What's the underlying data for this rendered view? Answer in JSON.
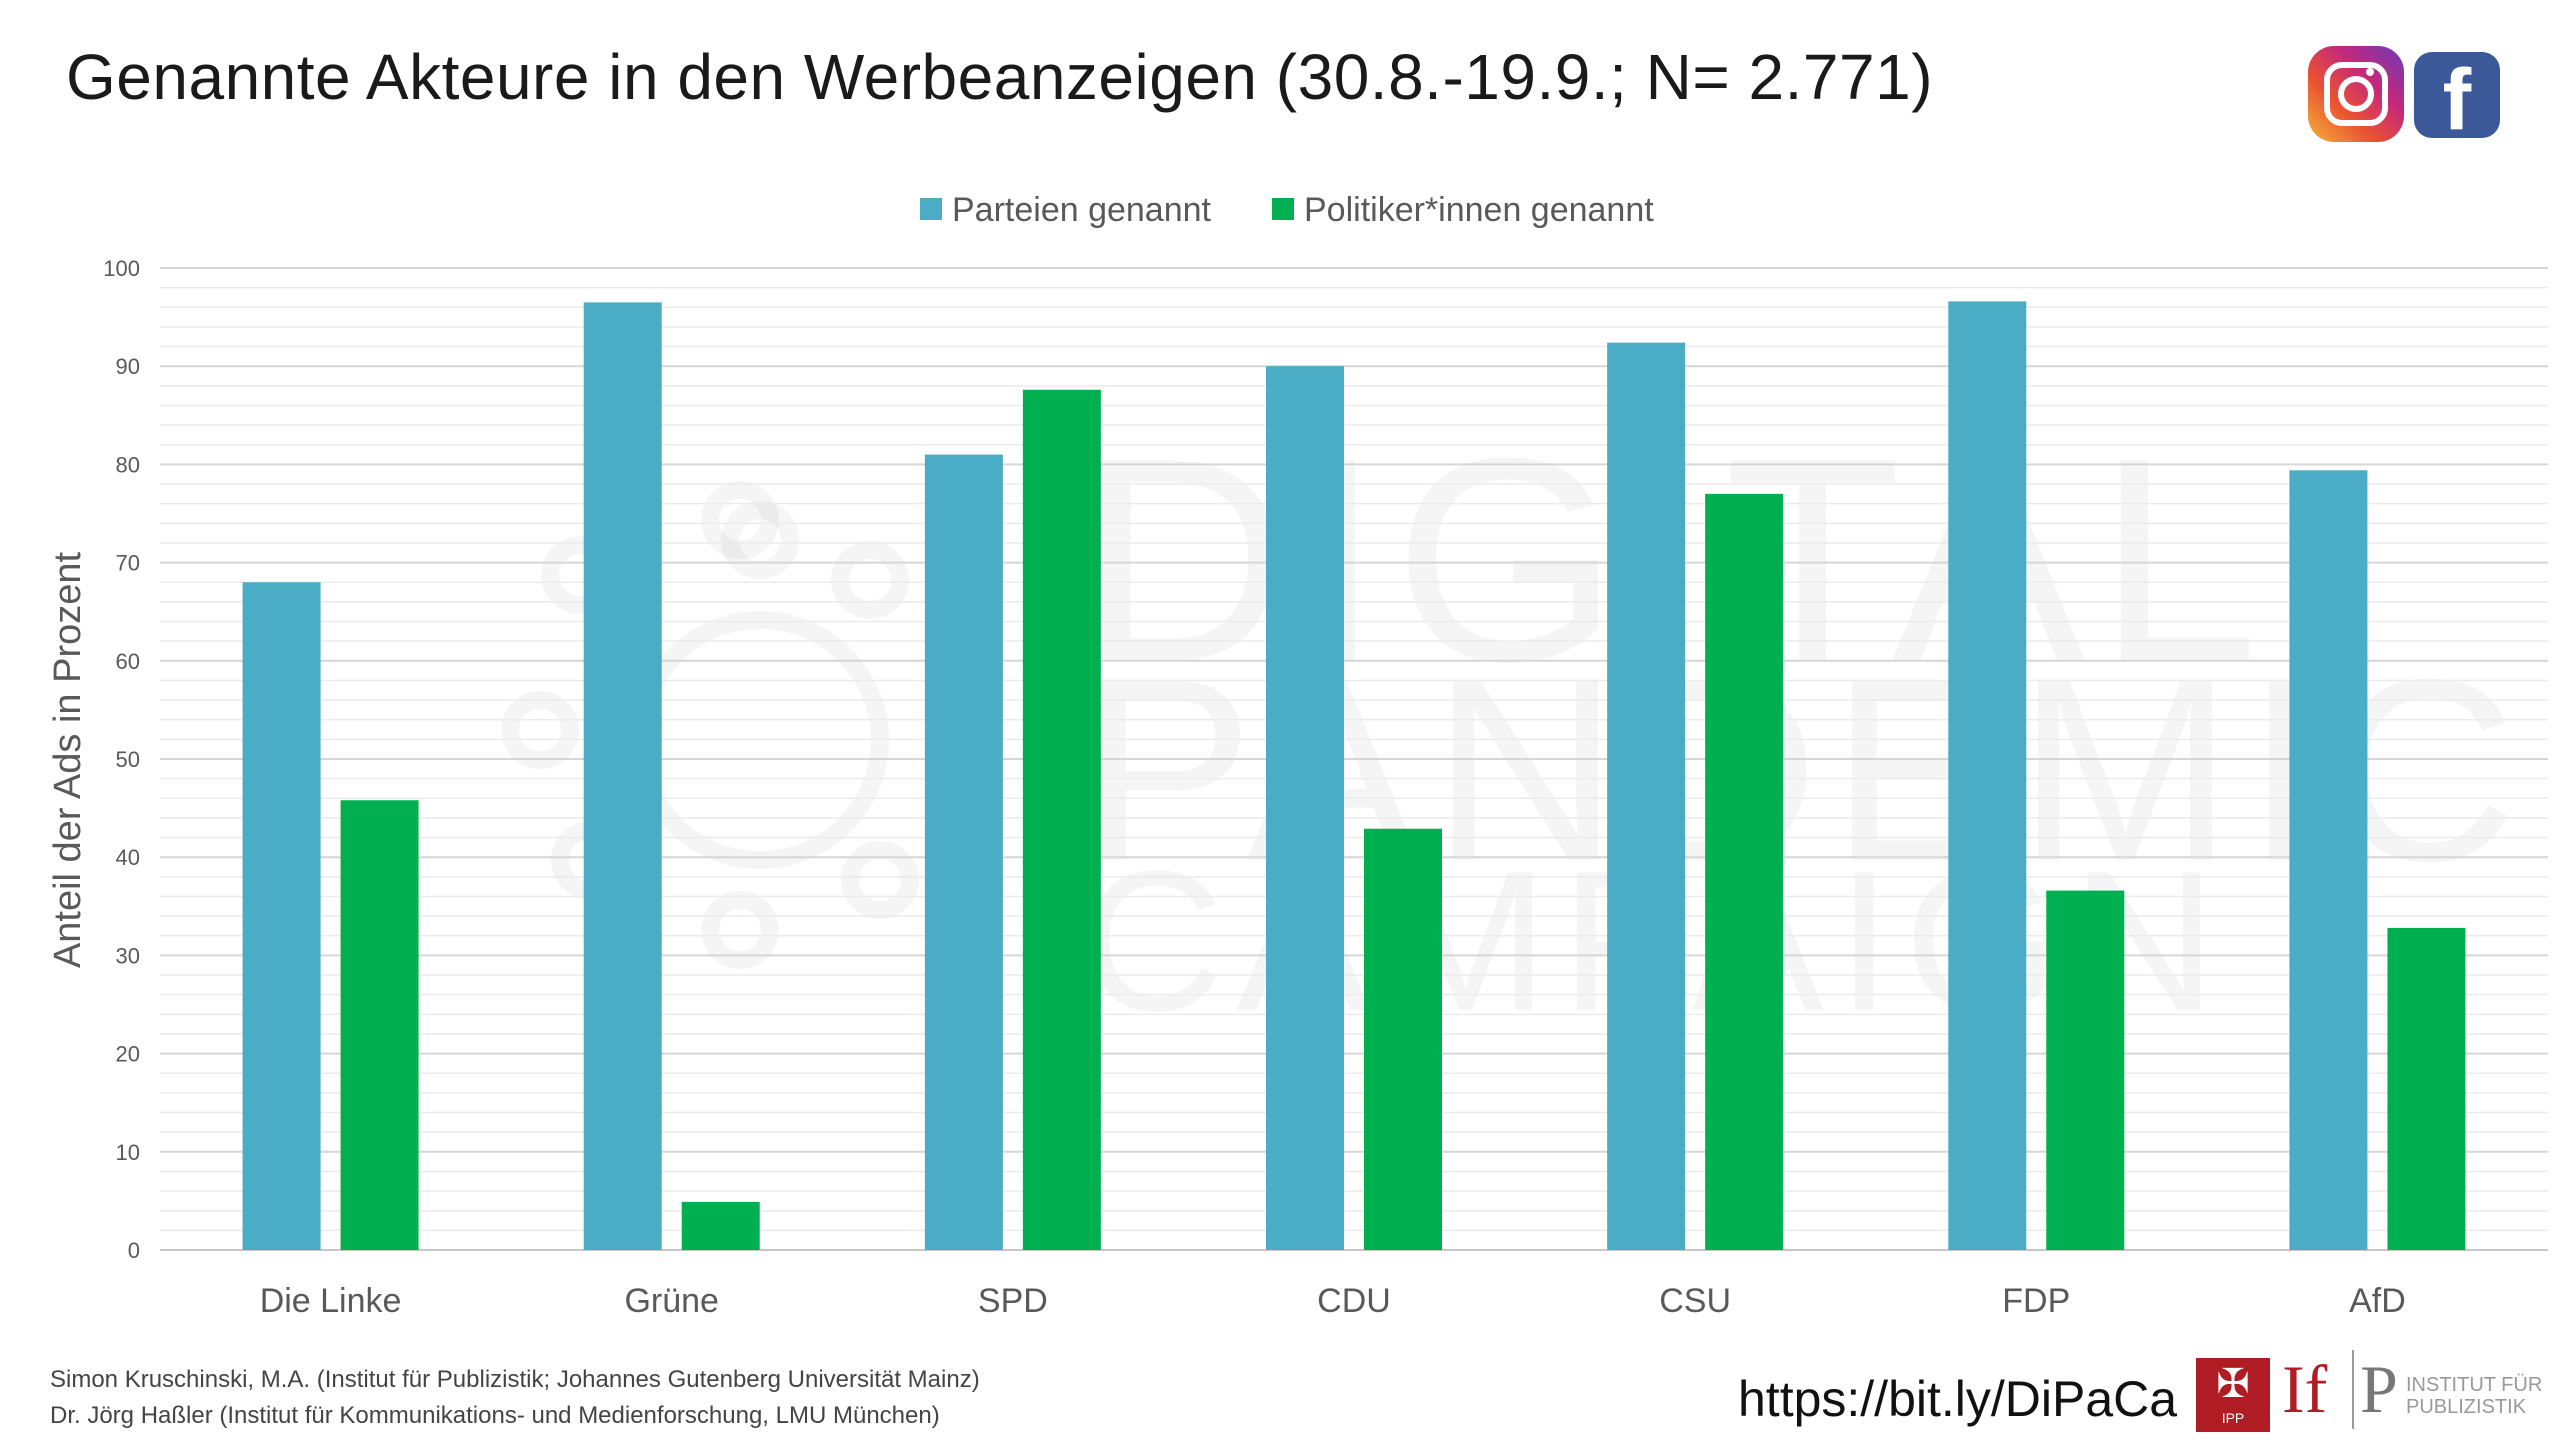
{
  "title": "Genannte Akteure in den Werbeanzeigen (30.8.-19.9.; N= 2.771)",
  "chart_data": {
    "type": "bar",
    "categories": [
      "Die Linke",
      "Grüne",
      "SPD",
      "CDU",
      "CSU",
      "FDP",
      "AfD"
    ],
    "series": [
      {
        "name": "Parteien genannt",
        "color": "#4bacc6",
        "values": [
          68,
          96.5,
          81,
          90,
          92.4,
          96.6,
          79.4
        ]
      },
      {
        "name": "Politiker*innen genannt",
        "color": "#00b050",
        "values": [
          45.8,
          4.9,
          87.6,
          42.9,
          77,
          36.6,
          32.8
        ]
      }
    ],
    "ylabel": "Anteil der Ads in Prozent",
    "ylim": [
      0,
      100
    ],
    "yticks": [
      "0",
      "10",
      "20",
      "30",
      "40",
      "50",
      "60",
      "70",
      "80",
      "90",
      "100"
    ],
    "grid": true,
    "legend": "top-center"
  },
  "credits": {
    "line1": "Simon Kruschinski, M.A. (Institut für Publizistik; Johannes Gutenberg Universität Mainz)",
    "line2": "Dr. Jörg Haßler (Institut für Kommunikations- und Medienforschung, LMU München)"
  },
  "url": "https://bit.ly/DiPaCa",
  "watermark": [
    "DIGITAL",
    "PANDEMIC",
    "CAMPAIGN"
  ],
  "logos": {
    "ipp_text": "IPP",
    "if_text": "If",
    "p_text": "P",
    "institut_line1": "INSTITUT FÜR",
    "institut_line2": "PUBLIZISTIK",
    "facebook_glyph": "f"
  }
}
